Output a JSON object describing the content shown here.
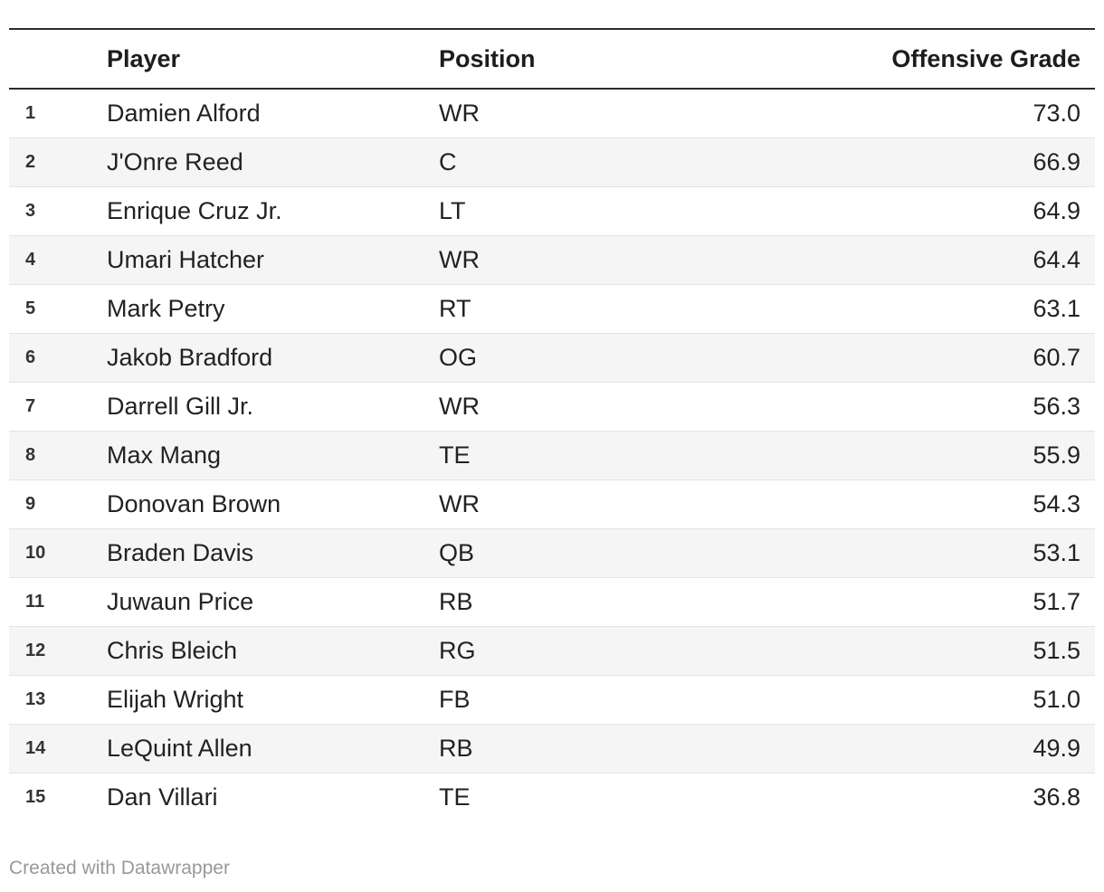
{
  "chart_data": {
    "type": "table",
    "columns": [
      {
        "key": "rank",
        "label": "",
        "align": "left"
      },
      {
        "key": "player",
        "label": "Player",
        "align": "left"
      },
      {
        "key": "position",
        "label": "Position",
        "align": "left"
      },
      {
        "key": "grade",
        "label": "Offensive Grade",
        "align": "right"
      }
    ],
    "rows": [
      {
        "rank": "1",
        "player": "Damien Alford",
        "position": "WR",
        "grade": "73.0"
      },
      {
        "rank": "2",
        "player": "J'Onre Reed",
        "position": "C",
        "grade": "66.9"
      },
      {
        "rank": "3",
        "player": "Enrique Cruz Jr.",
        "position": "LT",
        "grade": "64.9"
      },
      {
        "rank": "4",
        "player": "Umari Hatcher",
        "position": "WR",
        "grade": "64.4"
      },
      {
        "rank": "5",
        "player": "Mark Petry",
        "position": "RT",
        "grade": "63.1"
      },
      {
        "rank": "6",
        "player": "Jakob Bradford",
        "position": "OG",
        "grade": "60.7"
      },
      {
        "rank": "7",
        "player": "Darrell Gill Jr.",
        "position": "WR",
        "grade": "56.3"
      },
      {
        "rank": "8",
        "player": "Max Mang",
        "position": "TE",
        "grade": "55.9"
      },
      {
        "rank": "9",
        "player": "Donovan Brown",
        "position": "WR",
        "grade": "54.3"
      },
      {
        "rank": "10",
        "player": "Braden Davis",
        "position": "QB",
        "grade": "53.1"
      },
      {
        "rank": "11",
        "player": "Juwaun Price",
        "position": "RB",
        "grade": "51.7"
      },
      {
        "rank": "12",
        "player": "Chris Bleich",
        "position": "RG",
        "grade": "51.5"
      },
      {
        "rank": "13",
        "player": "Elijah Wright",
        "position": "FB",
        "grade": "51.0"
      },
      {
        "rank": "14",
        "player": "LeQuint Allen",
        "position": "RB",
        "grade": "49.9"
      },
      {
        "rank": "15",
        "player": "Dan Villari",
        "position": "TE",
        "grade": "36.8"
      }
    ],
    "layout_hints": {
      "striped": true,
      "stripe_rows": "even",
      "grade_column_align": "right"
    }
  },
  "footer": {
    "credit": "Created with Datawrapper"
  },
  "colors": {
    "background": "#ffffff",
    "stripe": "#f5f5f5",
    "rule_dark": "#2b2b2b",
    "rule_light": "#e3e3e3",
    "text": "#222222",
    "muted": "#999999"
  }
}
